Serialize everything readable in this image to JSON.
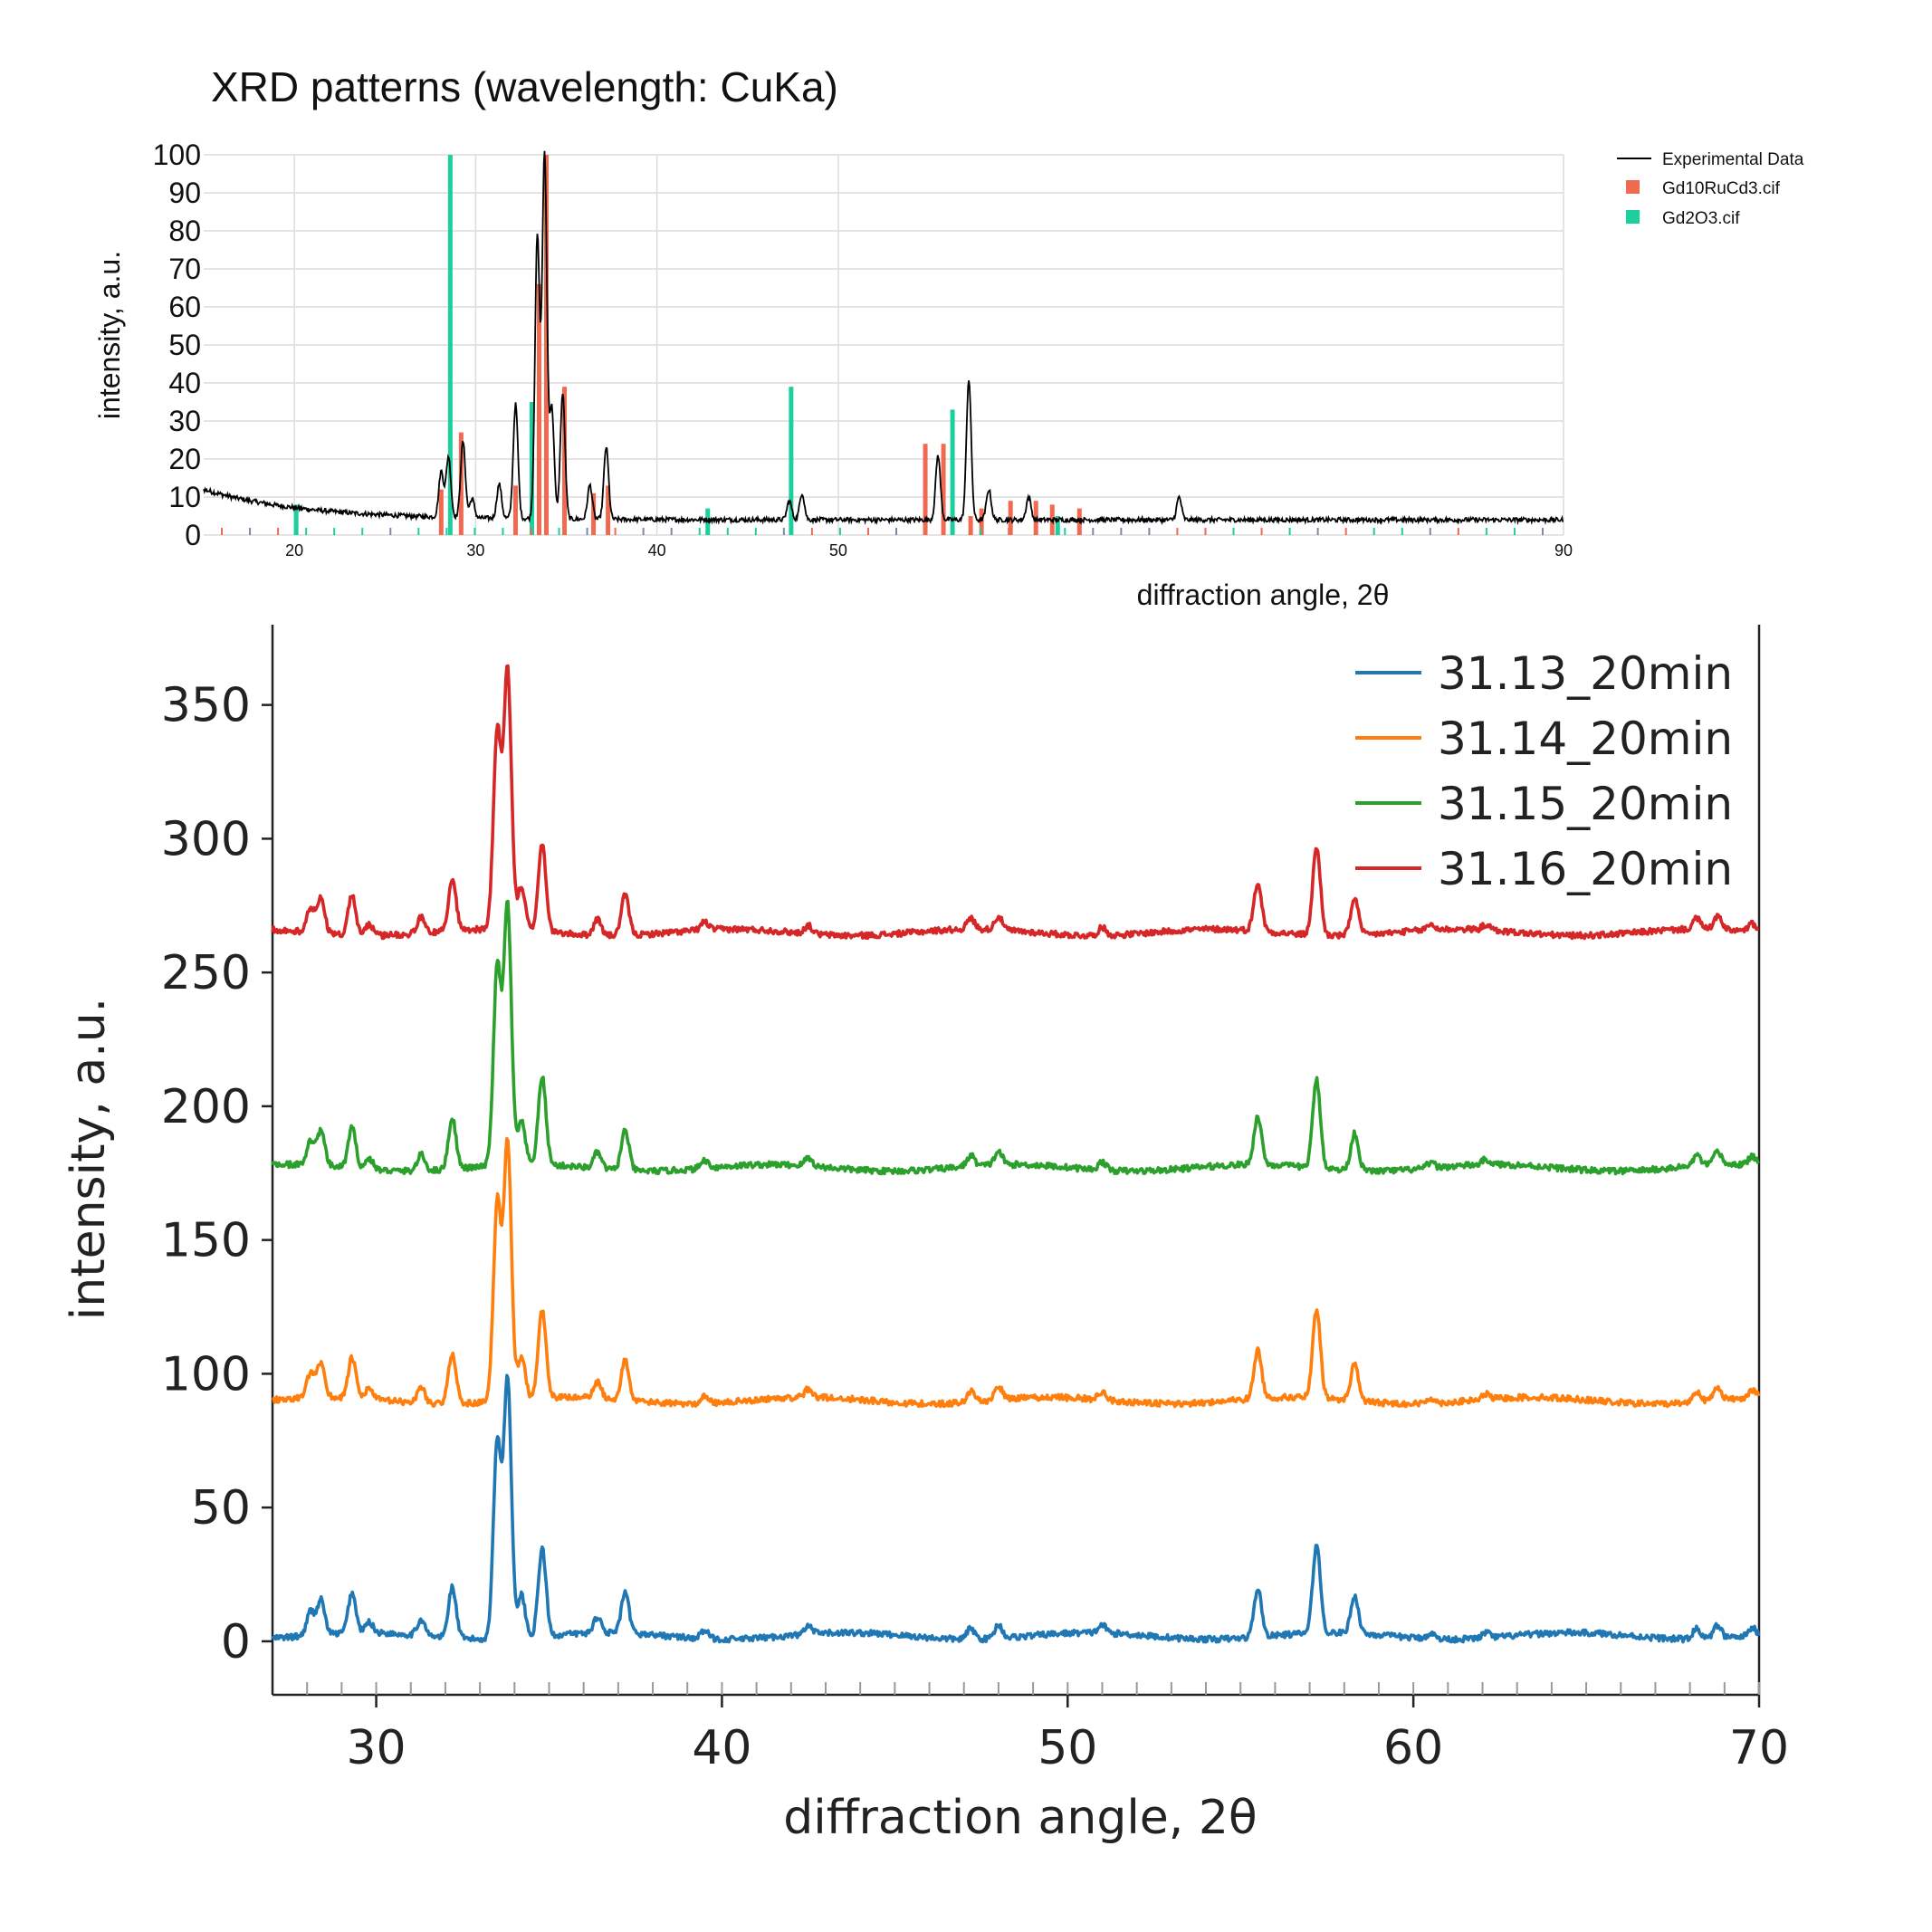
{
  "chart_data": [
    {
      "type": "line",
      "title": "XRD patterns (wavelength: CuKa)",
      "xlabel": "diffraction angle, 2θ",
      "ylabel": "intensity, a.u.",
      "xlim": [
        15,
        90
      ],
      "ylim": [
        0,
        100
      ],
      "x_ticks": [
        20,
        30,
        40,
        50,
        90
      ],
      "y_ticks": [
        0,
        10,
        20,
        30,
        40,
        50,
        60,
        70,
        80,
        90,
        100
      ],
      "grid": true,
      "legend_position": "top-right",
      "legend": [
        "Experimental Data",
        "Gd10RuCd3.cif",
        "Gd2O3.cif"
      ],
      "colors": {
        "experimental": "#000000",
        "gd10rucd3": "#ef6a50",
        "gd2o3": "#1ccf9f"
      },
      "experimental_peaks": [
        {
          "x": 28.1,
          "y": 16
        },
        {
          "x": 28.5,
          "y": 20
        },
        {
          "x": 29.3,
          "y": 24
        },
        {
          "x": 29.8,
          "y": 9
        },
        {
          "x": 31.3,
          "y": 13
        },
        {
          "x": 32.2,
          "y": 34
        },
        {
          "x": 33.4,
          "y": 78
        },
        {
          "x": 33.8,
          "y": 100
        },
        {
          "x": 34.2,
          "y": 33
        },
        {
          "x": 34.8,
          "y": 37
        },
        {
          "x": 36.3,
          "y": 13
        },
        {
          "x": 37.2,
          "y": 23
        },
        {
          "x": 47.3,
          "y": 9
        },
        {
          "x": 48.0,
          "y": 11
        },
        {
          "x": 55.5,
          "y": 21
        },
        {
          "x": 57.2,
          "y": 41
        },
        {
          "x": 58.3,
          "y": 12
        },
        {
          "x": 60.5,
          "y": 10
        },
        {
          "x": 68.8,
          "y": 10
        }
      ],
      "gd10rucd3_peaks": [
        {
          "x": 28.1,
          "y": 12
        },
        {
          "x": 29.2,
          "y": 27
        },
        {
          "x": 32.2,
          "y": 13
        },
        {
          "x": 33.5,
          "y": 66
        },
        {
          "x": 33.9,
          "y": 100
        },
        {
          "x": 34.9,
          "y": 39
        },
        {
          "x": 36.5,
          "y": 11
        },
        {
          "x": 37.3,
          "y": 13
        },
        {
          "x": 54.8,
          "y": 24
        },
        {
          "x": 55.8,
          "y": 24
        },
        {
          "x": 57.3,
          "y": 5
        },
        {
          "x": 57.9,
          "y": 7
        },
        {
          "x": 59.5,
          "y": 9
        },
        {
          "x": 60.9,
          "y": 9
        },
        {
          "x": 61.8,
          "y": 8
        },
        {
          "x": 63.3,
          "y": 7
        }
      ],
      "gd2o3_peaks": [
        {
          "x": 28.6,
          "y": 100
        },
        {
          "x": 33.1,
          "y": 35
        },
        {
          "x": 47.4,
          "y": 39
        },
        {
          "x": 56.3,
          "y": 33
        },
        {
          "x": 20.1,
          "y": 8
        },
        {
          "x": 42.8,
          "y": 7
        },
        {
          "x": 62.1,
          "y": 5
        }
      ]
    },
    {
      "type": "line",
      "title": "",
      "xlabel": "diffraction angle, 2θ",
      "ylabel": "intensity, a.u.",
      "xlim": [
        27,
        70
      ],
      "ylim": [
        -20,
        380
      ],
      "x_ticks": [
        30,
        40,
        50,
        60,
        70
      ],
      "y_ticks": [
        0,
        50,
        100,
        150,
        200,
        250,
        300,
        350
      ],
      "grid": false,
      "legend_position": "top-right",
      "series": [
        {
          "name": "31.13_20min",
          "color": "#1f77b4",
          "offset": 2
        },
        {
          "name": "31.14_20min",
          "color": "#ff7f0e",
          "offset": 90
        },
        {
          "name": "31.15_20min",
          "color": "#2ca02c",
          "offset": 177
        },
        {
          "name": "31.16_20min",
          "color": "#d62728",
          "offset": 265
        }
      ],
      "peaks": [
        {
          "x": 28.1,
          "y": 9
        },
        {
          "x": 28.4,
          "y": 13
        },
        {
          "x": 29.3,
          "y": 15
        },
        {
          "x": 29.8,
          "y": 4
        },
        {
          "x": 31.3,
          "y": 6
        },
        {
          "x": 32.2,
          "y": 19
        },
        {
          "x": 33.5,
          "y": 74
        },
        {
          "x": 33.8,
          "y": 97
        },
        {
          "x": 34.2,
          "y": 16
        },
        {
          "x": 34.8,
          "y": 33
        },
        {
          "x": 36.4,
          "y": 6
        },
        {
          "x": 37.2,
          "y": 15
        },
        {
          "x": 39.5,
          "y": 3
        },
        {
          "x": 42.5,
          "y": 3
        },
        {
          "x": 47.2,
          "y": 4
        },
        {
          "x": 48.0,
          "y": 5
        },
        {
          "x": 51.0,
          "y": 3
        },
        {
          "x": 55.5,
          "y": 18
        },
        {
          "x": 57.2,
          "y": 33
        },
        {
          "x": 58.3,
          "y": 14
        },
        {
          "x": 60.5,
          "y": 2
        },
        {
          "x": 62.1,
          "y": 2
        },
        {
          "x": 68.2,
          "y": 4
        },
        {
          "x": 68.8,
          "y": 5
        },
        {
          "x": 69.8,
          "y": 3
        }
      ]
    }
  ]
}
